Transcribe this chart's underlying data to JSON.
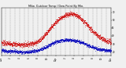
{
  "title": "Milw. Outdoor Temp / Dew Point By Min.",
  "background_color": "#f0f0f0",
  "plot_bg_color": "#f0f0f0",
  "grid_color": "#999999",
  "temp_color": "#cc0000",
  "dew_color": "#0000bb",
  "y_min": 15,
  "y_max": 75,
  "y_ticks": [
    20,
    30,
    40,
    50,
    60,
    70
  ],
  "x_ticks": [
    0,
    2,
    4,
    6,
    8,
    10,
    12,
    14,
    16,
    18,
    20,
    22,
    24
  ],
  "x_labels": [
    "12a",
    "2",
    "4",
    "6",
    "8",
    "10",
    "12p",
    "2",
    "4",
    "6",
    "8",
    "10",
    "12a"
  ],
  "num_points": 1440,
  "temp_data": [
    32,
    31,
    30,
    30,
    29,
    29,
    30,
    31,
    33,
    38,
    44,
    52,
    58,
    63,
    66,
    68,
    67,
    64,
    59,
    53,
    46,
    41,
    37,
    34,
    32
  ],
  "dew_data": [
    22,
    21,
    21,
    21,
    20,
    20,
    20,
    21,
    22,
    24,
    27,
    30,
    33,
    34,
    35,
    35,
    34,
    33,
    31,
    28,
    26,
    24,
    23,
    22,
    22
  ]
}
